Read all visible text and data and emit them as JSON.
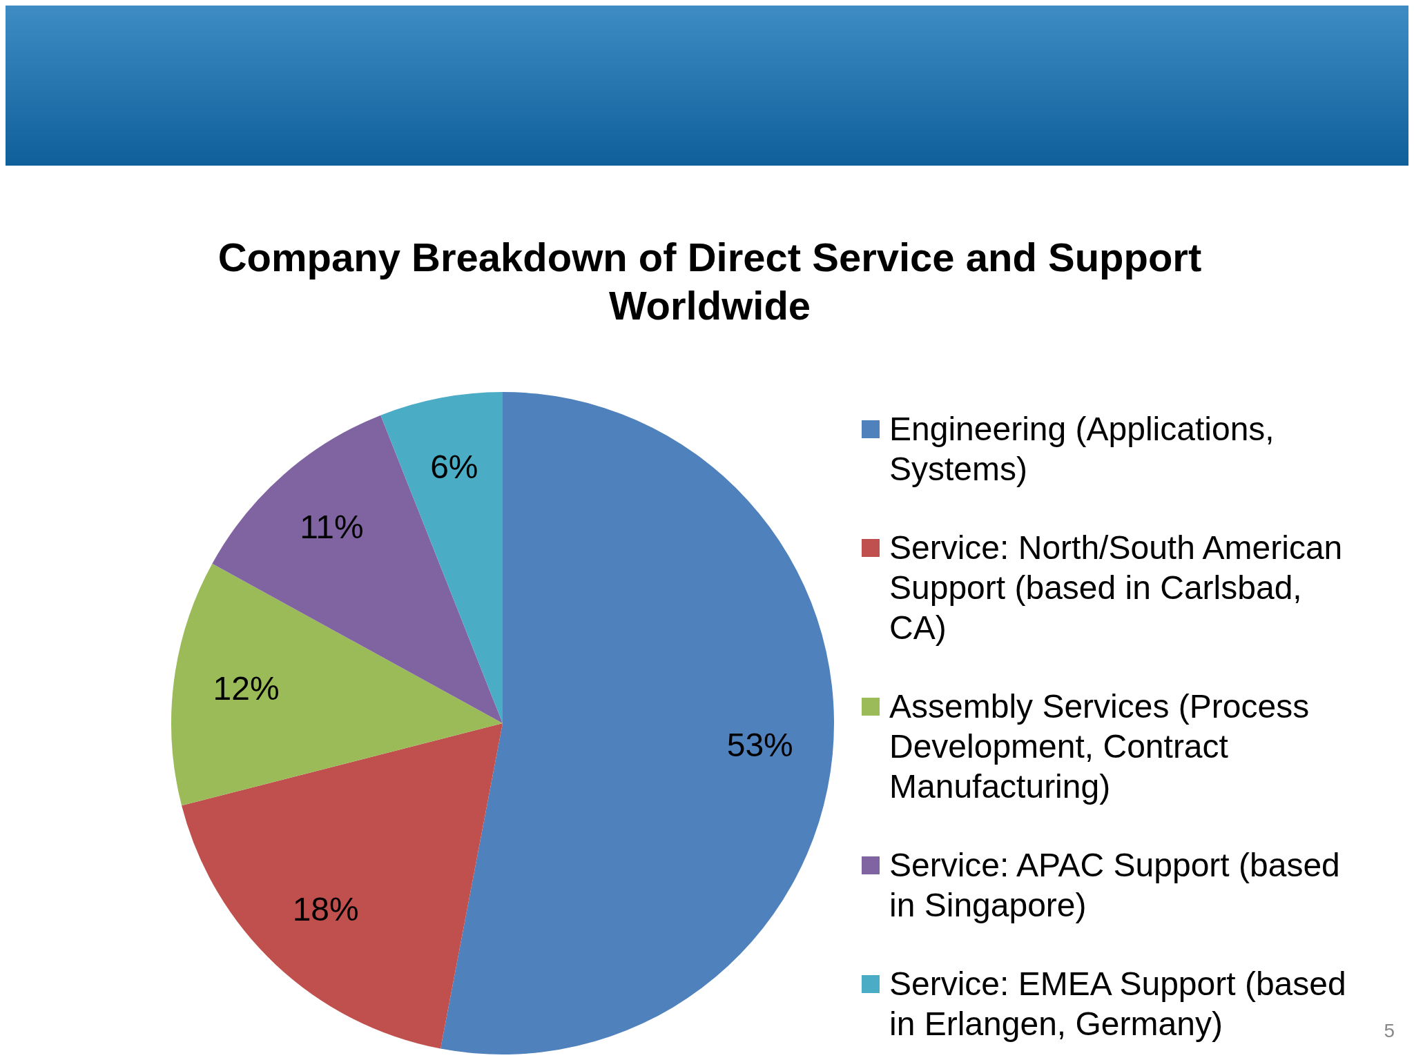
{
  "chart_data": {
    "type": "pie",
    "title": "Company Breakdown of Direct Service and Support Worldwide",
    "categories": [
      "Engineering (Applications, Systems)",
      "Service: North/South American Support (based in Carlsbad, CA)",
      "Assembly Services (Process Development, Contract Manufacturing)",
      "Service: APAC Support (based in Singapore)",
      "Service: EMEA Support (based in Erlangen, Germany)"
    ],
    "values": [
      53,
      18,
      12,
      11,
      6
    ],
    "colors": [
      "#4f81bd",
      "#c0504d",
      "#9bbb59",
      "#8064a2",
      "#4bacc6"
    ],
    "value_labels": [
      "53%",
      "18%",
      "12%",
      "11%",
      "6%"
    ],
    "legend": "right",
    "annotations": [
      "5"
    ]
  }
}
